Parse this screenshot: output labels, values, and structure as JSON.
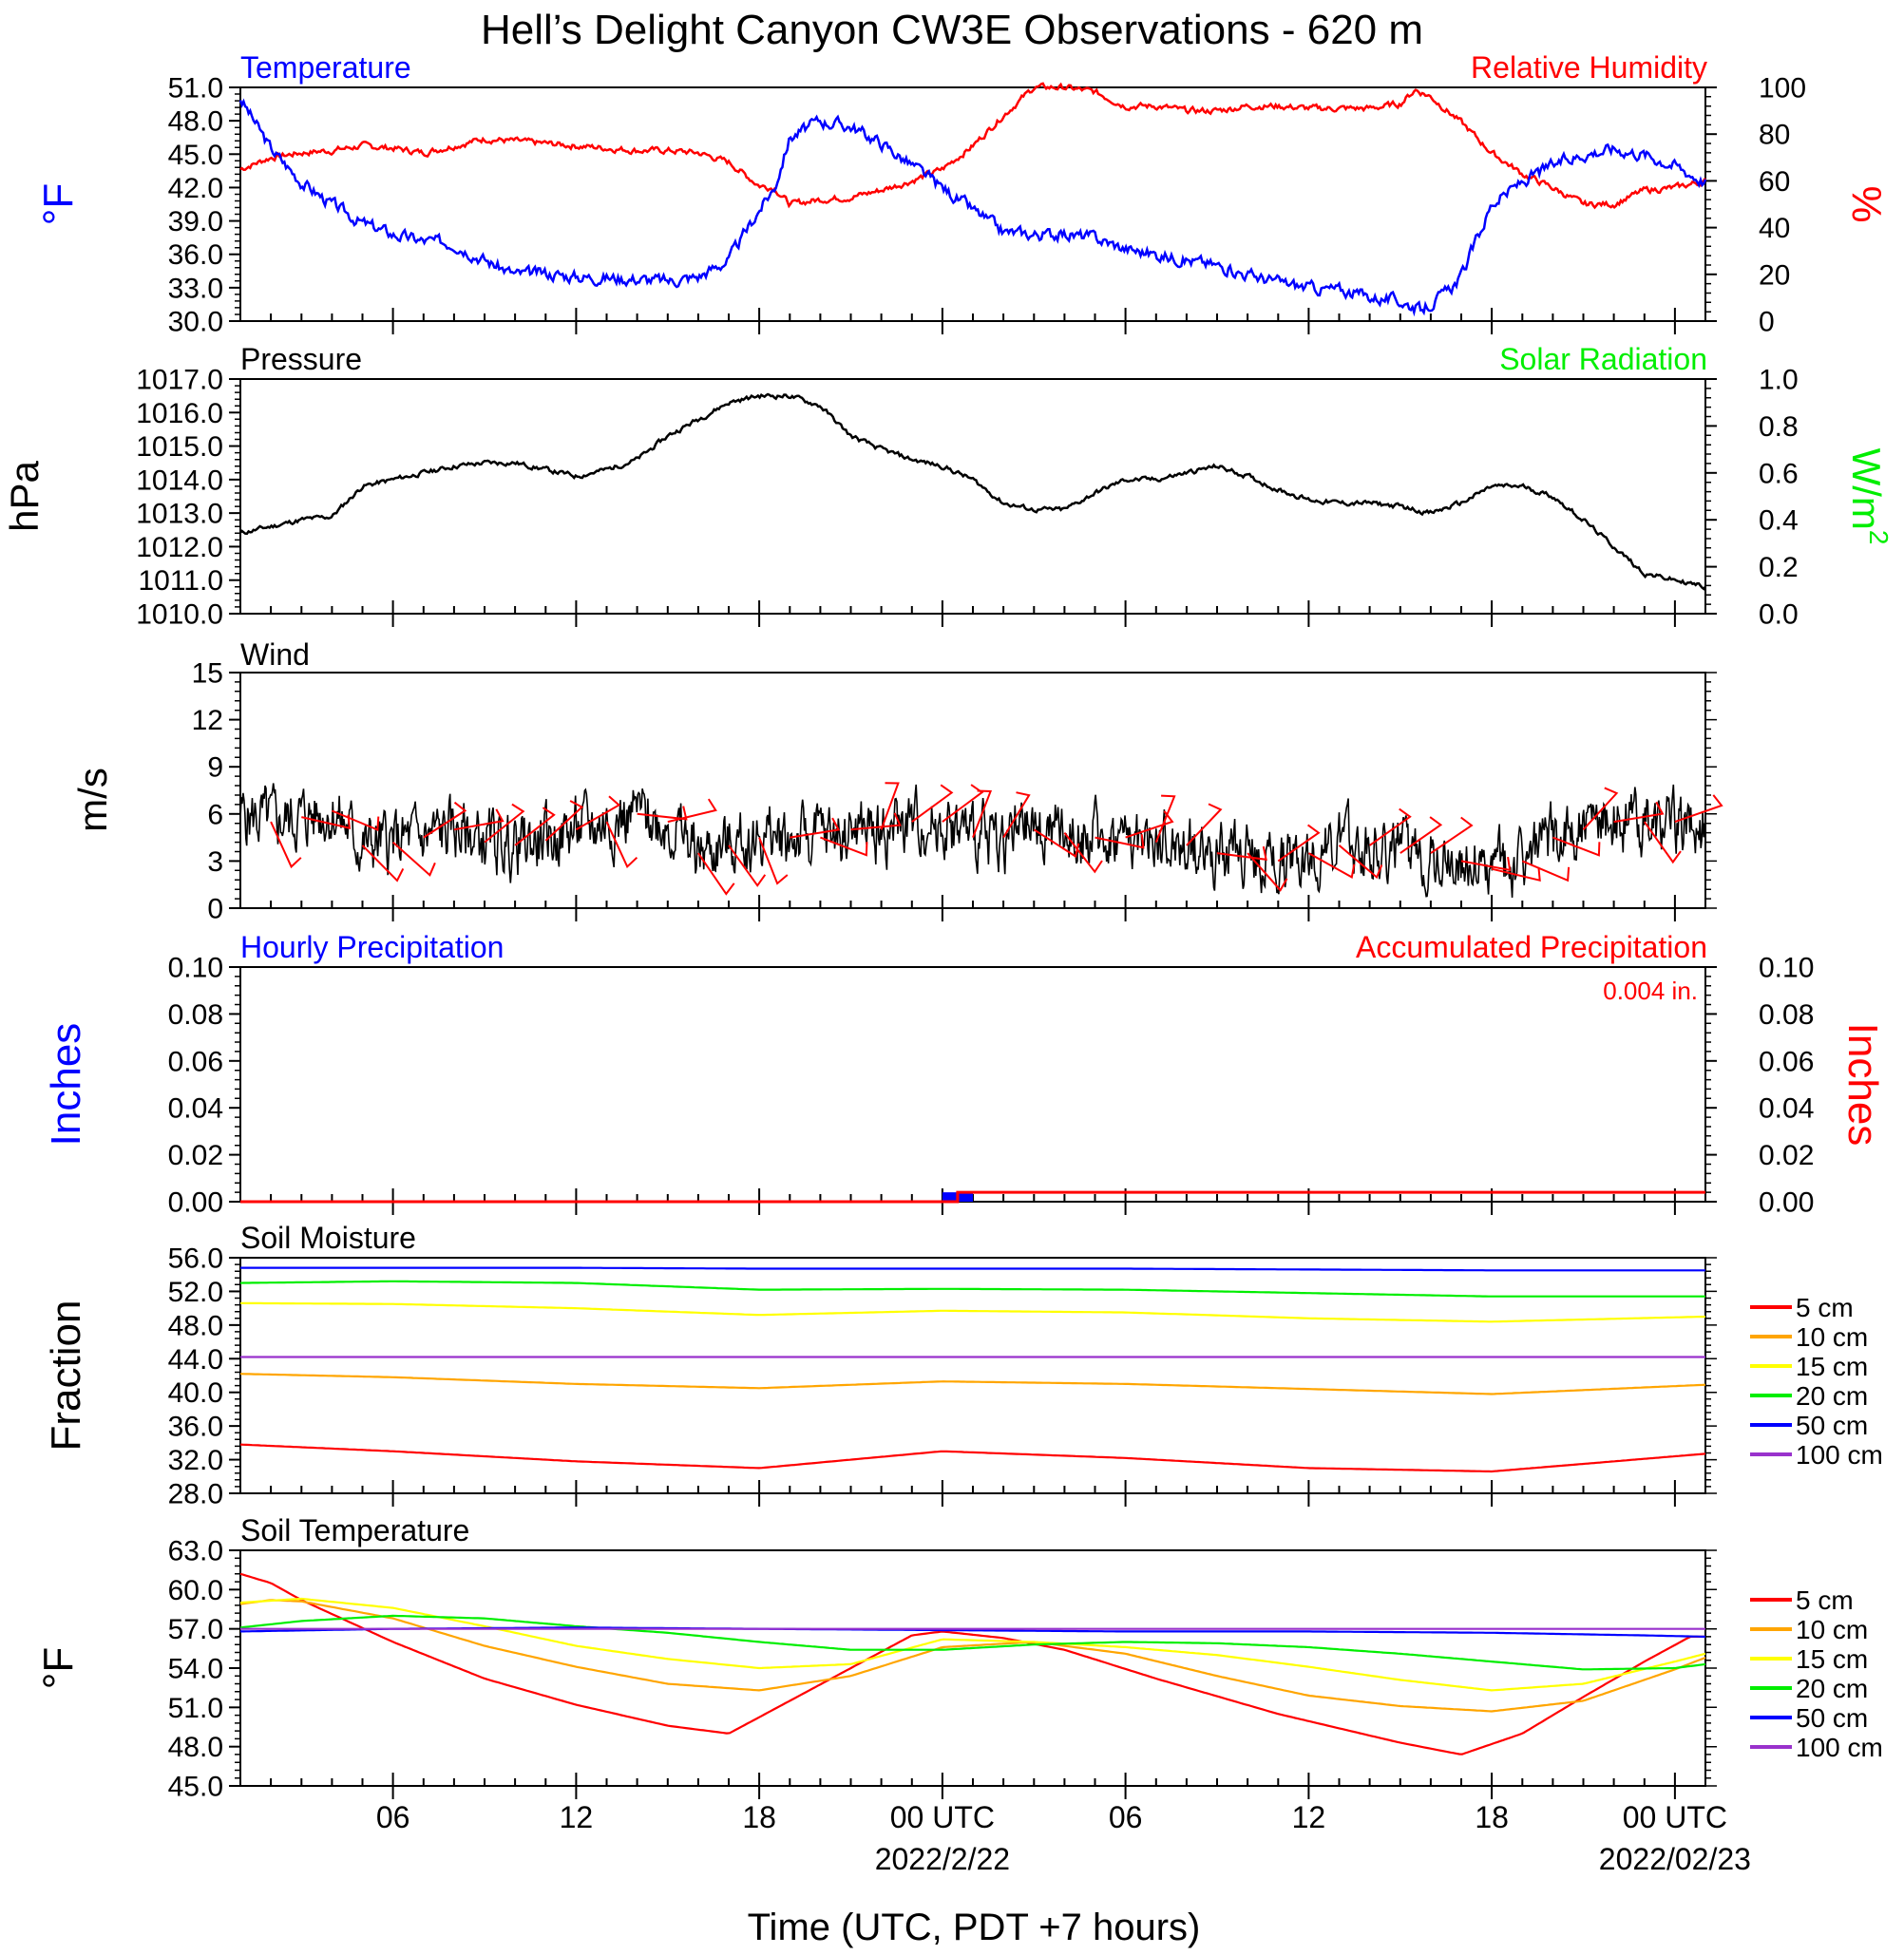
{
  "title": "Hell’s Delight Canyon CW3E Observations - 620 m",
  "xaxis": {
    "label": "Time (UTC, PDT +7 hours)",
    "range_hours": [
      1,
      49
    ],
    "ticks": [
      {
        "h": 6,
        "label": "06"
      },
      {
        "h": 12,
        "label": "12"
      },
      {
        "h": 18,
        "label": "18"
      },
      {
        "h": 24,
        "label": "00 UTC"
      },
      {
        "h": 30,
        "label": "06"
      },
      {
        "h": 36,
        "label": "12"
      },
      {
        "h": 42,
        "label": "18"
      },
      {
        "h": 48,
        "label": "00 UTC"
      }
    ],
    "date_labels": [
      {
        "h": 24,
        "label": "2022/2/22"
      },
      {
        "h": 48,
        "label": "2022/02/23"
      }
    ]
  },
  "colors": {
    "temperature": "#0000ff",
    "humidity": "#ff0000",
    "pressure": "#000000",
    "solar": "#00ee00",
    "wind": "#000000",
    "barbs": "#ff0000",
    "hourly_precip": "#0000ff",
    "accum_precip": "#ff0000"
  },
  "chart_data": [
    {
      "id": "temp_rh",
      "type": "line",
      "left_title": "Temperature",
      "right_title": "Relative Humidity",
      "ylabel_left": "°F",
      "ylabel_right": "%",
      "ylim_left": [
        30,
        51
      ],
      "ylim_right": [
        0,
        100
      ],
      "yticks_left": [
        "30.0",
        "33.0",
        "36.0",
        "39.0",
        "42.0",
        "45.0",
        "48.0",
        "51.0"
      ],
      "yticks_right": [
        "0",
        "20",
        "40",
        "60",
        "80",
        "100"
      ],
      "series": [
        {
          "name": "Temperature",
          "axis": "left",
          "x": [
            1,
            2,
            3,
            4,
            5,
            6,
            7,
            8,
            9,
            10,
            11,
            12,
            13,
            14,
            15,
            16,
            17,
            18,
            18.5,
            19,
            20,
            21,
            22,
            23,
            24,
            25,
            26,
            27,
            28,
            29,
            30,
            31,
            32,
            33,
            34,
            35,
            36,
            37,
            38,
            39,
            39.7,
            40.5,
            41,
            42,
            43,
            44,
            45,
            46,
            47,
            48,
            49
          ],
          "y": [
            50,
            45.5,
            42.5,
            40.5,
            38.8,
            37.8,
            37.2,
            37.0,
            35.5,
            34.2,
            34.3,
            34.0,
            33.9,
            33.8,
            33.6,
            34.0,
            35.5,
            40.0,
            42.0,
            46.5,
            48.0,
            47.5,
            46.0,
            44.0,
            42.0,
            40.0,
            38.0,
            37.8,
            37.8,
            37.5,
            36.5,
            36.0,
            35.5,
            35.0,
            34.2,
            33.5,
            33.0,
            32.8,
            32.2,
            31.8,
            31.0,
            32.5,
            34.0,
            40.5,
            42.5,
            44.0,
            45.0,
            45.5,
            45.0,
            44.0,
            42.5
          ]
        },
        {
          "name": "Relative Humidity",
          "axis": "right",
          "x": [
            1,
            2,
            3,
            4,
            5,
            6,
            7,
            8,
            9,
            10,
            11,
            12,
            13,
            14,
            15,
            16,
            17,
            18,
            18.5,
            19,
            20,
            21,
            22,
            23,
            24,
            25,
            26,
            27,
            28,
            29,
            30,
            31,
            32,
            33,
            34,
            35,
            36,
            37,
            38,
            39,
            39.5,
            40,
            41,
            42,
            43,
            44,
            45,
            46,
            47,
            48,
            49
          ],
          "y": [
            65,
            70,
            72,
            73,
            75,
            74,
            72,
            75,
            78,
            77,
            76,
            75,
            74,
            73,
            73,
            72,
            68,
            58,
            57,
            50,
            52,
            53,
            56,
            60,
            65,
            75,
            88,
            100,
            100,
            98,
            92,
            92,
            90,
            90,
            92,
            92,
            91,
            91,
            91,
            93,
            99,
            96,
            85,
            72,
            63,
            57,
            50,
            50,
            56,
            57,
            60
          ]
        }
      ]
    },
    {
      "id": "pressure",
      "type": "line",
      "left_title": "Pressure",
      "right_title": "Solar Radiation",
      "ylabel_left": "hPa",
      "ylabel_right": "W/m",
      "ylabel_right_sup": "2",
      "ylim_left": [
        1010,
        1017
      ],
      "ylim_right": [
        0,
        1
      ],
      "yticks_left": [
        "1010.0",
        "1011.0",
        "1012.0",
        "1013.0",
        "1014.0",
        "1015.0",
        "1016.0",
        "1017.0"
      ],
      "yticks_right": [
        "0.0",
        "0.2",
        "0.4",
        "0.6",
        "0.8",
        "1.0"
      ],
      "series": [
        {
          "name": "Pressure",
          "axis": "left",
          "x": [
            1,
            2,
            3,
            4,
            5,
            6,
            7,
            8,
            9,
            10,
            11,
            12,
            13,
            14,
            15,
            16,
            17,
            18,
            19,
            20,
            21,
            22,
            23,
            24,
            25,
            26,
            27,
            28,
            29,
            30,
            31,
            32,
            33,
            34,
            35,
            36,
            37,
            38,
            39,
            40,
            41,
            42,
            43,
            44,
            45,
            46,
            47,
            48,
            49
          ],
          "y": [
            1012.4,
            1012.6,
            1012.8,
            1012.9,
            1013.8,
            1014.0,
            1014.2,
            1014.4,
            1014.5,
            1014.5,
            1014.3,
            1014.1,
            1014.3,
            1014.6,
            1015.3,
            1015.8,
            1016.3,
            1016.5,
            1016.5,
            1016.2,
            1015.3,
            1014.9,
            1014.6,
            1014.4,
            1014.0,
            1013.3,
            1013.1,
            1013.1,
            1013.6,
            1014.0,
            1014.0,
            1014.2,
            1014.4,
            1014.1,
            1013.7,
            1013.4,
            1013.3,
            1013.3,
            1013.2,
            1013.0,
            1013.3,
            1013.8,
            1013.8,
            1013.5,
            1012.8,
            1012.0,
            1011.2,
            1011.0,
            1010.8
          ]
        }
      ]
    },
    {
      "id": "wind",
      "type": "line",
      "left_title": "Wind",
      "ylabel_left": "m/s",
      "ylim_left": [
        0,
        15
      ],
      "yticks_left": [
        "0",
        "3",
        "6",
        "9",
        "12",
        "15"
      ],
      "series": [
        {
          "name": "Wind",
          "axis": "left",
          "x": [
            1,
            2,
            3,
            4,
            5,
            6,
            7,
            8,
            9,
            10,
            11,
            12,
            13,
            14,
            15,
            16,
            17,
            18,
            19,
            20,
            21,
            22,
            23,
            24,
            25,
            26,
            27,
            28,
            29,
            30,
            31,
            32,
            33,
            34,
            35,
            36,
            37,
            38,
            39,
            40,
            41,
            42,
            43,
            44,
            45,
            46,
            47,
            48,
            49
          ],
          "y": [
            6,
            5.5,
            5.8,
            6.2,
            4,
            4.2,
            4.5,
            5,
            4.2,
            4,
            4.3,
            5,
            5.5,
            6,
            5.5,
            3.5,
            4,
            4.5,
            4.5,
            4.5,
            5,
            5,
            5.5,
            5.5,
            4.5,
            4.5,
            5,
            4.8,
            4.5,
            4.5,
            4.2,
            4,
            3.5,
            3.5,
            3,
            3.5,
            4,
            4,
            3.5,
            3.5,
            3,
            2.5,
            3,
            4.5,
            5,
            5.5,
            5.5,
            5.5,
            5
          ]
        }
      ],
      "barb_times_h": [
        2,
        3,
        4,
        5,
        6,
        7,
        8,
        9,
        10,
        11,
        12,
        13,
        14,
        15,
        16,
        17,
        18,
        19,
        20,
        21,
        22,
        23,
        24,
        25,
        26,
        27,
        28,
        29,
        30,
        31,
        32,
        33,
        34,
        35,
        36,
        37,
        38,
        39,
        40,
        41,
        42,
        43,
        44,
        45,
        46,
        47,
        48
      ]
    },
    {
      "id": "precip",
      "type": "bar",
      "left_title": "Hourly Precipitation",
      "right_title": "Accumulated Precipitation",
      "annotation": "0.004 in.",
      "ylabel_left": "Inches",
      "ylabel_right": "Inches",
      "ylim_left": [
        0,
        0.1
      ],
      "ylim_right": [
        0,
        0.1
      ],
      "yticks_left": [
        "0.00",
        "0.02",
        "0.04",
        "0.06",
        "0.08",
        "0.10"
      ],
      "yticks_right": [
        "0.00",
        "0.02",
        "0.04",
        "0.06",
        "0.08",
        "0.10"
      ],
      "hourly": [
        {
          "h": 24,
          "value": 0.004
        }
      ],
      "accumulated": {
        "x": [
          1,
          24.5,
          24.5,
          49
        ],
        "y": [
          0,
          0,
          0.004,
          0.004
        ]
      }
    },
    {
      "id": "soil_moisture",
      "type": "line",
      "left_title": "Soil Moisture",
      "ylabel_left": "Fraction",
      "ylim_left": [
        28,
        56
      ],
      "yticks_left": [
        "28.0",
        "32.0",
        "36.0",
        "40.0",
        "44.0",
        "48.0",
        "52.0",
        "56.0"
      ],
      "series": [
        {
          "name": "5 cm",
          "color": "#ff0000",
          "x": [
            1,
            6,
            12,
            18,
            24,
            30,
            36,
            42,
            49
          ],
          "y": [
            33.8,
            33.0,
            31.8,
            31.0,
            33.0,
            32.2,
            31.0,
            30.6,
            32.7
          ]
        },
        {
          "name": "10 cm",
          "color": "#ffa500",
          "x": [
            1,
            6,
            12,
            18,
            24,
            30,
            36,
            42,
            49
          ],
          "y": [
            42.2,
            41.8,
            41.0,
            40.5,
            41.3,
            41.0,
            40.4,
            39.8,
            40.9
          ]
        },
        {
          "name": "15 cm",
          "color": "#ffff00",
          "x": [
            1,
            6,
            12,
            18,
            24,
            30,
            36,
            42,
            49
          ],
          "y": [
            50.6,
            50.5,
            50.0,
            49.2,
            49.7,
            49.5,
            48.8,
            48.4,
            49.0
          ]
        },
        {
          "name": "20 cm",
          "color": "#00ee00",
          "x": [
            1,
            6,
            12,
            18,
            24,
            30,
            36,
            42,
            49
          ],
          "y": [
            53.0,
            53.2,
            53.0,
            52.2,
            52.3,
            52.2,
            51.8,
            51.4,
            51.4
          ]
        },
        {
          "name": "50 cm",
          "color": "#0000ff",
          "x": [
            1,
            6,
            12,
            18,
            24,
            30,
            36,
            42,
            49
          ],
          "y": [
            54.8,
            54.8,
            54.8,
            54.7,
            54.7,
            54.7,
            54.6,
            54.5,
            54.5
          ]
        },
        {
          "name": "100 cm",
          "color": "#9932cc",
          "x": [
            1,
            6,
            12,
            18,
            24,
            30,
            36,
            42,
            49
          ],
          "y": [
            44.2,
            44.2,
            44.2,
            44.2,
            44.2,
            44.2,
            44.2,
            44.2,
            44.2
          ]
        }
      ]
    },
    {
      "id": "soil_temp",
      "type": "line",
      "left_title": "Soil Temperature",
      "ylabel_left": "°F",
      "ylim_left": [
        45,
        63
      ],
      "yticks_left": [
        "45.0",
        "48.0",
        "51.0",
        "54.0",
        "57.0",
        "60.0",
        "63.0"
      ],
      "series": [
        {
          "name": "5 cm",
          "color": "#ff0000",
          "x": [
            1,
            2,
            3,
            6,
            9,
            12,
            15,
            17,
            19,
            21,
            23,
            24,
            26,
            28,
            31,
            35,
            39,
            41,
            43,
            45,
            47,
            48.5,
            49
          ],
          "y": [
            61.2,
            60.5,
            59.2,
            56.0,
            53.2,
            51.2,
            49.6,
            49.0,
            51.5,
            54.0,
            56.5,
            56.8,
            56.3,
            55.4,
            53.2,
            50.5,
            48.3,
            47.4,
            49.0,
            51.8,
            54.5,
            56.4,
            56.4
          ]
        },
        {
          "name": "10 cm",
          "color": "#ffa500",
          "x": [
            1,
            2,
            3,
            6,
            9,
            12,
            15,
            18,
            21,
            24,
            27,
            30,
            33,
            36,
            39,
            42,
            45,
            48,
            49
          ],
          "y": [
            58.9,
            59.2,
            59.1,
            57.8,
            55.7,
            54.1,
            52.8,
            52.3,
            53.4,
            55.6,
            56.0,
            55.1,
            53.4,
            51.9,
            51.1,
            50.7,
            51.5,
            53.9,
            54.8
          ]
        },
        {
          "name": "15 cm",
          "color": "#ffff00",
          "x": [
            1,
            3,
            6,
            9,
            12,
            15,
            18,
            21,
            24,
            27,
            30,
            33,
            36,
            39,
            42,
            45,
            48,
            49
          ],
          "y": [
            59.0,
            59.3,
            58.6,
            57.2,
            55.7,
            54.7,
            54.0,
            54.3,
            56.2,
            56.0,
            55.6,
            55.0,
            54.1,
            53.1,
            52.3,
            52.8,
            54.5,
            55.1
          ]
        },
        {
          "name": "20 cm",
          "color": "#00ee00",
          "x": [
            1,
            3,
            6,
            9,
            12,
            15,
            18,
            21,
            24,
            27,
            30,
            33,
            36,
            39,
            42,
            45,
            48,
            49
          ],
          "y": [
            57.1,
            57.6,
            58.0,
            57.8,
            57.2,
            56.7,
            56.0,
            55.4,
            55.4,
            55.8,
            56.0,
            55.9,
            55.6,
            55.1,
            54.5,
            53.9,
            54.0,
            54.3
          ]
        },
        {
          "name": "50 cm",
          "color": "#0000ff",
          "x": [
            1,
            6,
            12,
            18,
            24,
            30,
            36,
            42,
            47,
            49
          ],
          "y": [
            56.8,
            57.0,
            57.1,
            57.0,
            56.9,
            56.8,
            56.8,
            56.7,
            56.5,
            56.4
          ]
        },
        {
          "name": "100 cm",
          "color": "#9932cc",
          "x": [
            1,
            6,
            12,
            18,
            24,
            30,
            36,
            42,
            49
          ],
          "y": [
            57.0,
            57.0,
            57.0,
            57.0,
            57.0,
            57.0,
            57.0,
            57.0,
            57.0
          ]
        }
      ]
    }
  ]
}
